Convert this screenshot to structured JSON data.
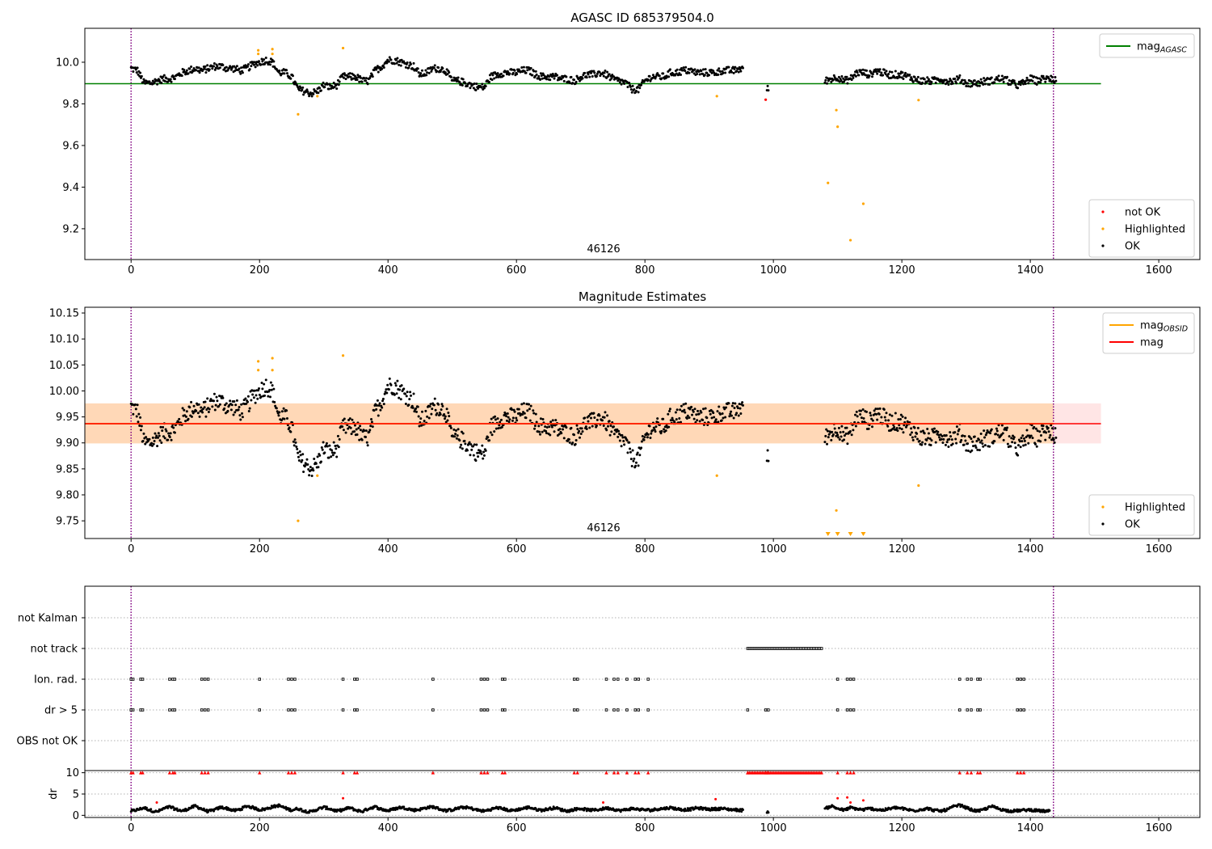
{
  "chart_data": [
    {
      "type": "scatter",
      "title": "AGASC ID 685379504.0",
      "xlim": [
        -72,
        1664
      ],
      "ylim": [
        9.052,
        10.163
      ],
      "xticks": [
        "0",
        "200",
        "400",
        "600",
        "800",
        "1000",
        "1200",
        "1400",
        "1600"
      ],
      "yticks": [
        "9.2",
        "9.4",
        "9.6",
        "9.8",
        "10.0"
      ],
      "annotation": {
        "text": "46126",
        "x": 718
      },
      "mag_agasc": 9.897,
      "mag_agasc_xrange": [
        -72,
        1510
      ],
      "vlines": [
        0,
        1436
      ],
      "highlighted": [
        [
          198,
          10.057
        ],
        [
          198,
          10.04
        ],
        [
          220,
          10.063
        ],
        [
          220,
          10.04
        ],
        [
          260,
          9.75
        ],
        [
          290,
          9.837
        ],
        [
          330,
          10.068
        ],
        [
          912,
          9.837
        ],
        [
          1085,
          9.42
        ],
        [
          1098,
          9.77
        ],
        [
          1100,
          9.69
        ],
        [
          1120,
          9.145
        ],
        [
          1140,
          9.32
        ],
        [
          1226,
          9.818
        ]
      ],
      "not_ok": [
        [
          988,
          9.82
        ]
      ],
      "legend_top": {
        "position": "top-right",
        "entries": [
          {
            "label": "mag",
            "sub": "AGASC",
            "color": "#008000"
          }
        ]
      },
      "legend_bottom": {
        "position": "bottom-right",
        "entries": [
          {
            "label": "not OK",
            "color": "#ff0000"
          },
          {
            "label": "Highlighted",
            "color": "#ffa500"
          },
          {
            "label": "OK",
            "color": "#000000"
          }
        ]
      }
    },
    {
      "type": "scatter",
      "title": "Magnitude Estimates",
      "xlim": [
        -72,
        1664
      ],
      "ylim": [
        9.716,
        10.161
      ],
      "xticks": [
        "0",
        "200",
        "400",
        "600",
        "800",
        "1000",
        "1200",
        "1400",
        "1600"
      ],
      "yticks": [
        "9.75",
        "9.80",
        "9.85",
        "9.90",
        "9.95",
        "10.00",
        "10.05",
        "10.10",
        "10.15"
      ],
      "annotation": {
        "text": "46126",
        "x": 718
      },
      "mag": 9.937,
      "mag_band": [
        9.899,
        9.976
      ],
      "mag_obsid_xrange": [
        -72,
        1436
      ],
      "mag_xrange": [
        -72,
        1510
      ],
      "vlines": [
        0,
        1436
      ],
      "highlighted": [
        [
          198,
          10.057
        ],
        [
          198,
          10.04
        ],
        [
          220,
          10.063
        ],
        [
          220,
          10.04
        ],
        [
          260,
          9.75
        ],
        [
          290,
          9.837
        ],
        [
          330,
          10.068
        ],
        [
          912,
          9.837
        ],
        [
          1098,
          9.77
        ],
        [
          1226,
          9.818
        ]
      ],
      "offscale_low": [
        1085,
        1100,
        1120,
        1140
      ],
      "legend_top": {
        "position": "top-right",
        "entries": [
          {
            "label": "mag",
            "sub": "OBSID",
            "color": "#ffa500"
          },
          {
            "label": "mag",
            "sub": "",
            "color": "#ff0000"
          }
        ]
      },
      "legend_bottom": {
        "position": "bottom-right",
        "entries": [
          {
            "label": "Highlighted",
            "color": "#ffa500"
          },
          {
            "label": "OK",
            "color": "#000000"
          }
        ]
      }
    },
    {
      "type": "scatter",
      "title": "",
      "categories": [
        "not Kalman",
        "not track",
        "Ion. rad.",
        "dr > 5",
        "OBS not OK"
      ],
      "not_track_range": [
        960,
        1075
      ],
      "ion_rad": [
        0,
        3,
        15,
        18,
        60,
        65,
        68,
        110,
        115,
        120,
        200,
        245,
        250,
        255,
        330,
        348,
        352,
        470,
        545,
        550,
        555,
        578,
        582,
        690,
        695,
        740,
        752,
        758,
        772,
        785,
        790,
        805,
        1100,
        1115,
        1120,
        1125,
        1290,
        1302,
        1308,
        1318,
        1322,
        1380,
        1385,
        1390
      ],
      "dr_gt_5": [
        0,
        3,
        15,
        18,
        60,
        65,
        68,
        110,
        115,
        120,
        200,
        245,
        250,
        255,
        330,
        348,
        352,
        470,
        545,
        550,
        555,
        578,
        582,
        690,
        695,
        740,
        752,
        758,
        772,
        785,
        790,
        805,
        960,
        988,
        992,
        1100,
        1115,
        1120,
        1125,
        1290,
        1302,
        1308,
        1318,
        1322,
        1380,
        1385,
        1390
      ]
    },
    {
      "type": "scatter",
      "ylabel": "dr",
      "ylim": [
        -0.5,
        10.5
      ],
      "yticks": [
        "0",
        "5",
        "10"
      ],
      "xticks": [
        "0",
        "200",
        "400",
        "600",
        "800",
        "1000",
        "1200",
        "1400",
        "1600"
      ],
      "dr_outliers": [
        [
          40,
          3.0
        ],
        [
          330,
          4.0
        ],
        [
          735,
          3.0
        ],
        [
          910,
          3.8
        ],
        [
          1100,
          4.0
        ],
        [
          1115,
          4.2
        ],
        [
          1120,
          3.0
        ],
        [
          1140,
          3.5
        ]
      ]
    }
  ],
  "series": {
    "x_start": 0,
    "x_step": 10,
    "mag": [
      9.97,
      9.96,
      9.9,
      9.9,
      9.91,
      9.92,
      9.92,
      9.93,
      9.95,
      9.96,
      9.97,
      9.96,
      9.97,
      9.98,
      9.98,
      9.97,
      9.97,
      9.96,
      9.97,
      9.99,
      10.0,
      10.01,
      10.0,
      9.95,
      9.95,
      9.93,
      9.87,
      9.86,
      9.85,
      9.86,
      9.89,
      9.88,
      9.89,
      9.93,
      9.93,
      9.93,
      9.91,
      9.91,
      9.96,
      9.98,
      10.01,
      10.01,
      10.0,
      9.99,
      9.98,
      9.94,
      9.95,
      9.97,
      9.97,
      9.96,
      9.91,
      9.91,
      9.9,
      9.89,
      9.88,
      9.88,
      9.93,
      9.94,
      9.95,
      9.95,
      9.95,
      9.96,
      9.96,
      9.94,
      9.93,
      9.93,
      9.93,
      9.92,
      9.92,
      9.91,
      9.93,
      9.94,
      9.94,
      9.95,
      9.94,
      9.92,
      9.91,
      9.9,
      9.87,
      9.87,
      9.91,
      9.93,
      9.93,
      9.93,
      9.95,
      9.95,
      9.96,
      9.96,
      9.95,
      9.95,
      9.95,
      9.95,
      9.96,
      9.96,
      9.96,
      9.97,
      null,
      null,
      null,
      9.87,
      null,
      null,
      null,
      null,
      null,
      null,
      null,
      null,
      9.91,
      9.92,
      9.93,
      9.91,
      9.92,
      9.95,
      9.95,
      9.94,
      9.96,
      9.95,
      9.94,
      9.94,
      9.94,
      9.93,
      9.92,
      9.91,
      9.91,
      9.91,
      9.92,
      9.91,
      9.91,
      9.92,
      9.9,
      9.9,
      9.9,
      9.91,
      9.91,
      9.92,
      9.92,
      9.9,
      9.89,
      9.9,
      9.92,
      9.91,
      9.92,
      9.92,
      9.91
    ],
    "dr": [
      1.0,
      1.3,
      1.8,
      1.2,
      0.8,
      1.5,
      2.0,
      1.4,
      1.0,
      1.6,
      2.2,
      1.5,
      0.9,
      1.3,
      1.9,
      1.6,
      1.1,
      1.4,
      2.2,
      1.8,
      1.3,
      1.5,
      2.0,
      2.3,
      1.7,
      1.2,
      1.6,
      1.0,
      0.8,
      1.4,
      1.9,
      1.5,
      1.0,
      1.3,
      1.8,
      1.2,
      0.9,
      1.6,
      2.0,
      1.4,
      1.1,
      1.5,
      1.9,
      1.6,
      1.2,
      1.4,
      1.8,
      2.0,
      1.5,
      1.1,
      1.3,
      1.7,
      1.9,
      1.6,
      1.2,
      1.0,
      1.4,
      1.8,
      1.5,
      1.1,
      1.3,
      1.6,
      1.9,
      1.4,
      1.2,
      1.5,
      1.8,
      1.3,
      1.0,
      1.4,
      1.6,
      1.3,
      1.2,
      1.4,
      1.7,
      1.5,
      1.1,
      1.3,
      1.6,
      1.4,
      1.3,
      1.2,
      1.5,
      1.6,
      1.8,
      1.5,
      1.3,
      1.4,
      1.7,
      1.6,
      1.4,
      1.5,
      1.6,
      1.4,
      1.3,
      1.2,
      null,
      null,
      null,
      0.9,
      null,
      null,
      null,
      null,
      null,
      null,
      null,
      null,
      1.5,
      2.2,
      1.6,
      1.2,
      1.8,
      1.5,
      1.3,
      1.6,
      1.4,
      1.2,
      1.5,
      1.8,
      1.6,
      1.3,
      1.1,
      1.4,
      1.6,
      1.2,
      1.0,
      1.3,
      2.0,
      2.4,
      1.8,
      1.2,
      1.0,
      1.5,
      2.1,
      1.6,
      1.2,
      1.0,
      1.1,
      1.2,
      1.3,
      1.1,
      1.0
    ]
  },
  "colors": {
    "ok": "#000000",
    "highlighted": "#ffa500",
    "not_ok": "#ff0000",
    "agasc": "#008000",
    "obsid": "#ffa500",
    "mag": "#ff0000",
    "vline": "#800080"
  }
}
